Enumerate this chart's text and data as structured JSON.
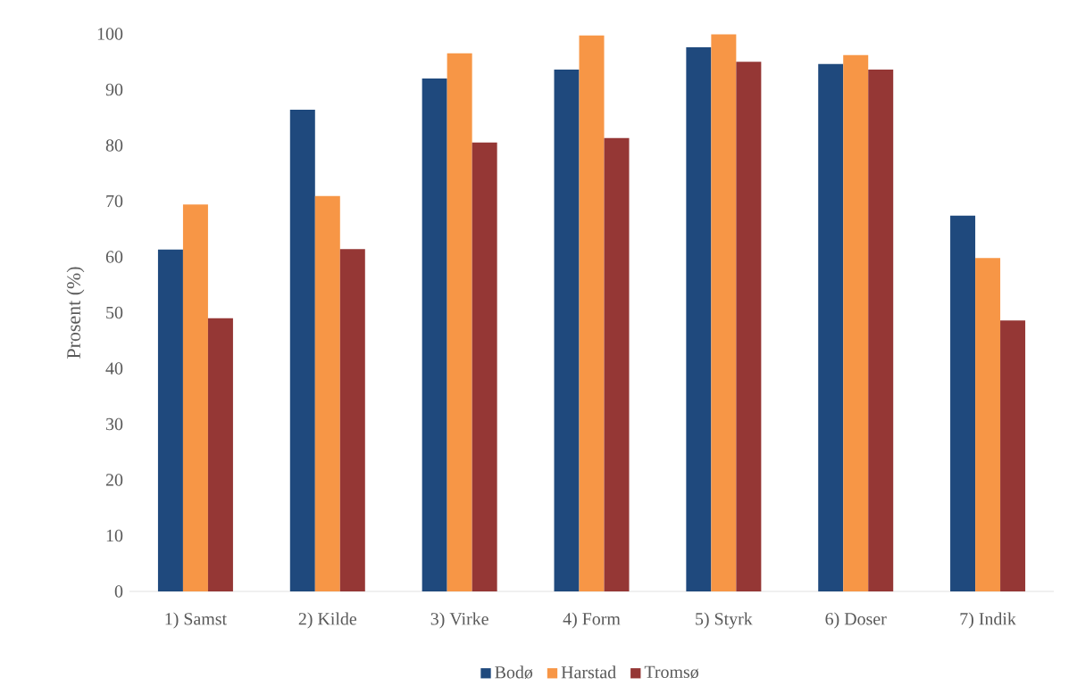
{
  "chart_data": {
    "type": "bar",
    "ylabel": "Prosent (%)",
    "categories": [
      "1) Samst",
      "2) Kilde",
      "3) Virke",
      "4) Form",
      "5) Styrk",
      "6) Doser",
      "7) Indik"
    ],
    "series": [
      {
        "name": "Bodø",
        "color": "#1f497d",
        "values": [
          61.3,
          86.4,
          92.0,
          93.6,
          97.6,
          94.6,
          67.4
        ]
      },
      {
        "name": "Harstad",
        "color": "#f79646",
        "values": [
          69.4,
          70.9,
          96.5,
          99.7,
          99.9,
          96.2,
          59.8
        ]
      },
      {
        "name": "Tromsø",
        "color": "#953735",
        "values": [
          49.0,
          61.4,
          80.5,
          81.3,
          95.0,
          93.6,
          48.6
        ]
      }
    ],
    "ylim": [
      0,
      100
    ],
    "yticks": [
      0,
      10,
      20,
      30,
      40,
      50,
      60,
      70,
      80,
      90,
      100
    ],
    "legend": "bottom"
  }
}
